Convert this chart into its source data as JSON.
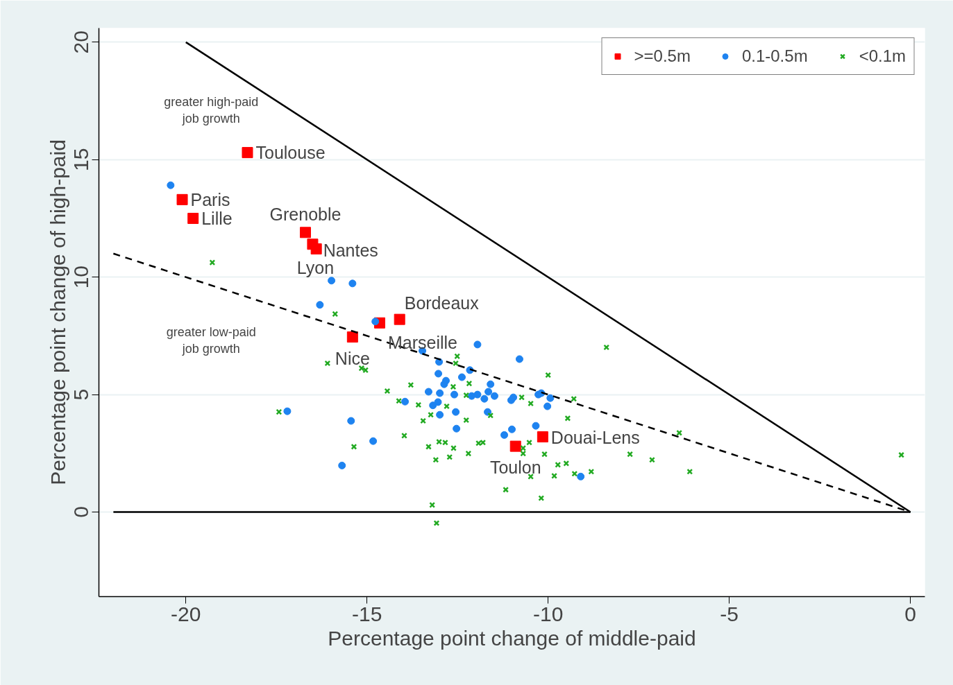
{
  "chart_data": {
    "type": "scatter",
    "xlabel": "Percentage point change of middle-paid",
    "ylabel": "Percentage point change of high-paid",
    "xlim": [
      -22.4,
      0.4
    ],
    "ylim": [
      -3.6,
      20.6
    ],
    "xticks": [
      -20,
      -15,
      -10,
      -5,
      0
    ],
    "yticks": [
      0,
      5,
      10,
      15,
      20
    ],
    "grid": "y",
    "legend": "top right",
    "series": [
      {
        "name": ">=0.5m",
        "color": "#ff0000",
        "marker": "square",
        "x": [
          -18.3,
          -20.1,
          -19.8,
          -16.7,
          -16.4,
          -16.5,
          -14.1,
          -14.65,
          -15.4,
          -10.9,
          -10.15
        ],
        "values": [
          15.3,
          13.3,
          12.5,
          11.9,
          11.2,
          11.4,
          8.2,
          8.05,
          7.45,
          2.8,
          3.2
        ]
      },
      {
        "name": "0.1-0.5m",
        "color": "#1e83f0",
        "marker": "circle",
        "x": [
          -20.42,
          -15.98,
          -15.4,
          -16.3,
          -14.77,
          -13.47,
          -11.95,
          -10.79,
          -13.01,
          -13.03,
          -12.16,
          -12.38,
          -12.82,
          -12.87,
          -11.59,
          -13.3,
          -12.99,
          -12.59,
          -12.11,
          -11.95,
          -11.65,
          -11.76,
          -11.48,
          -13.95,
          -13.04,
          -13.18,
          -11.02,
          -10.96,
          -10.27,
          -10.19,
          -9.94,
          -10.02,
          -12.99,
          -12.55,
          -11.67,
          -12.53,
          -11.0,
          -11.21,
          -10.34,
          -9.1,
          -17.2,
          -15.44,
          -14.83,
          -15.69
        ],
        "values": [
          13.91,
          9.85,
          9.73,
          8.82,
          8.11,
          6.86,
          7.13,
          6.51,
          6.39,
          5.89,
          6.04,
          5.74,
          5.59,
          5.44,
          5.44,
          5.12,
          5.06,
          5.0,
          4.94,
          5.0,
          5.12,
          4.82,
          4.94,
          4.7,
          4.68,
          4.54,
          4.76,
          4.88,
          5.0,
          5.06,
          4.85,
          4.5,
          4.14,
          4.26,
          4.26,
          3.55,
          3.52,
          3.28,
          3.67,
          1.51,
          4.29,
          3.88,
          3.02,
          1.98
        ]
      },
      {
        "name": "<0.1m",
        "color": "#22aa22",
        "marker": "cross",
        "x": [
          -19.27,
          -15.88,
          -16.09,
          -15.15,
          -15.04,
          -12.51,
          -12.55,
          -13.79,
          -14.44,
          -14.12,
          -12.62,
          -12.18,
          -12.26,
          -10.73,
          -10.48,
          -10.0,
          -8.39,
          -9.29,
          -9.46,
          -13.58,
          -12.8,
          -13.24,
          -13.45,
          -12.26,
          -11.59,
          -13.97,
          -13.01,
          -12.84,
          -13.3,
          -12.61,
          -11.92,
          -11.8,
          -13.1,
          -12.72,
          -12.2,
          -10.52,
          -10.69,
          -10.69,
          -10.1,
          -9.73,
          -9.5,
          -9.83,
          -9.27,
          -8.81,
          -10.48,
          -11.17,
          -10.19,
          -13.2,
          -13.08,
          -6.38,
          -7.74,
          -7.13,
          -6.09,
          -0.25,
          -17.43,
          -15.36
        ],
        "values": [
          10.62,
          8.43,
          6.33,
          6.12,
          6.04,
          6.63,
          6.33,
          5.41,
          5.15,
          4.73,
          5.33,
          5.47,
          4.97,
          4.88,
          4.62,
          5.83,
          7.01,
          4.82,
          3.99,
          4.56,
          4.5,
          4.14,
          3.88,
          3.91,
          4.11,
          3.25,
          2.99,
          2.96,
          2.78,
          2.72,
          2.93,
          2.96,
          2.22,
          2.34,
          2.49,
          2.96,
          2.72,
          2.49,
          2.46,
          2.01,
          2.07,
          1.54,
          1.63,
          1.72,
          1.51,
          0.95,
          0.59,
          0.3,
          -0.47,
          3.37,
          2.46,
          2.22,
          1.72,
          2.43,
          4.26,
          2.78
        ]
      },
      {
        "type": "line",
        "color": "#000000",
        "line_style": "solid",
        "x": [
          -20,
          0
        ],
        "values": [
          20,
          0
        ]
      },
      {
        "type": "line",
        "color": "#000000",
        "line_style": "dashed",
        "x": [
          -22,
          0
        ],
        "values": [
          11,
          0
        ]
      },
      {
        "type": "line",
        "color": "#000000",
        "line_style": "solid",
        "x": [
          -22,
          0
        ],
        "values": [
          0,
          0
        ]
      }
    ],
    "annotations": [
      {
        "text": "Toulouse",
        "x": -18.3,
        "y": 15.3
      },
      {
        "text": "Paris",
        "x": -20.1,
        "y": 13.3
      },
      {
        "text": "Lille",
        "x": -19.8,
        "y": 12.5
      },
      {
        "text": "Grenoble",
        "x": -16.7,
        "y": 11.9
      },
      {
        "text": "Nantes",
        "x": -16.4,
        "y": 11.2
      },
      {
        "text": "Lyon",
        "x": -16.5,
        "y": 11.4
      },
      {
        "text": "Bordeaux",
        "x": -14.1,
        "y": 8.2
      },
      {
        "text": "Marseille",
        "x": -14.65,
        "y": 8.05
      },
      {
        "text": "Nice",
        "x": -15.4,
        "y": 7.45
      },
      {
        "text": "Toulon",
        "x": -10.9,
        "y": 2.8
      },
      {
        "text": "Douai-Lens",
        "x": -10.15,
        "y": 3.2
      },
      "greater high-paid\njob growth",
      "greater low-paid\njob growth"
    ]
  }
}
